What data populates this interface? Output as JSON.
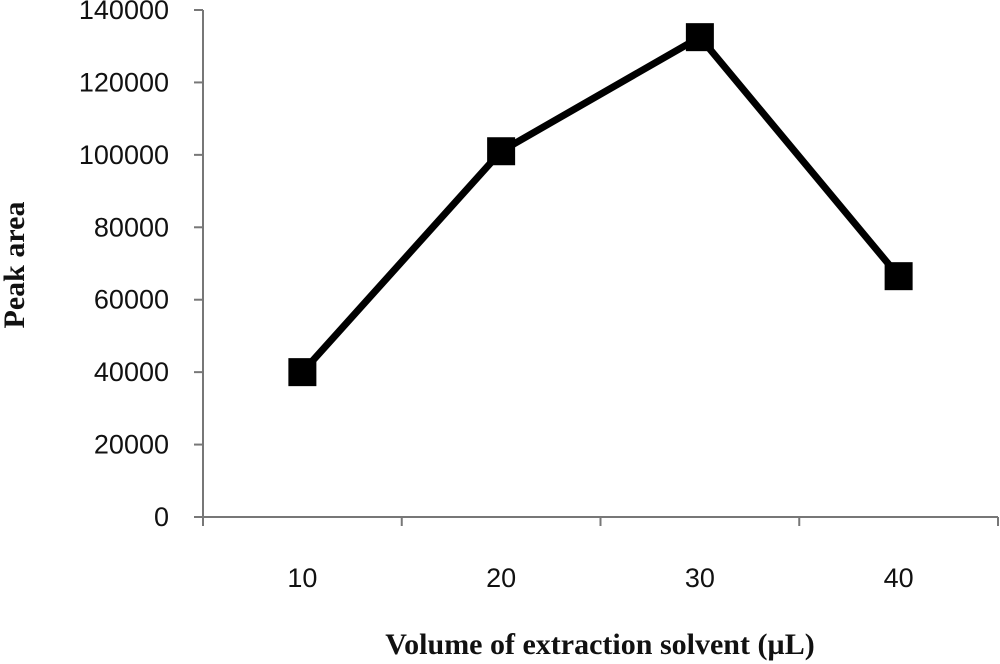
{
  "chart_data": {
    "type": "line",
    "xlabel": "Volume of extraction solvent (µL)",
    "ylabel": "Peak area",
    "categories": [
      "10",
      "20",
      "30",
      "40"
    ],
    "series": [
      {
        "values": [
          40000,
          101000,
          132500,
          66500
        ],
        "marker": "square",
        "color": "#000000"
      }
    ],
    "ylim": [
      0,
      140000
    ],
    "yticks": [
      "0",
      "20000",
      "40000",
      "60000",
      "80000",
      "100000",
      "120000",
      "140000"
    ],
    "grid": false,
    "legend": "none"
  }
}
